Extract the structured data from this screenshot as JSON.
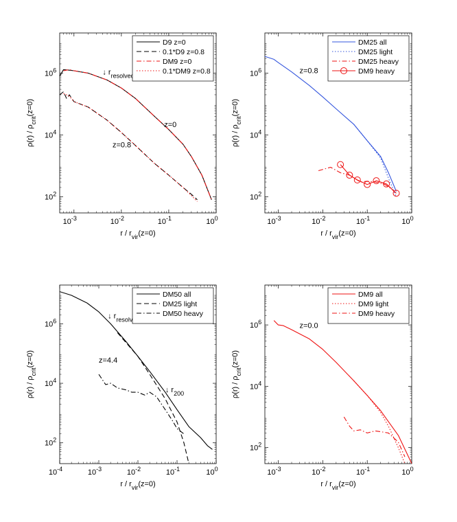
{
  "colors": {
    "black": "#000000",
    "blue": "#3355dd",
    "red": "#ee1111"
  },
  "chart_data": [
    {
      "type": "line",
      "panel": "top-left",
      "xscale": "log",
      "yscale": "log",
      "xlim": [
        0.0005,
        1
      ],
      "ylim": [
        30,
        20000000
      ],
      "xlabel": "r / r_vir(z=0)",
      "ylabel": "ρ(r) / ρ_crit(z=0)",
      "xticks": [
        {
          "value": 0.001,
          "label": "10^-3"
        },
        {
          "value": 0.01,
          "label": "10^-2"
        },
        {
          "value": 0.1,
          "label": "10^-1"
        },
        {
          "value": 1,
          "label": "10^0"
        }
      ],
      "yticks": [
        {
          "value": 100,
          "label": "10^2"
        },
        {
          "value": 10000,
          "label": "10^4"
        },
        {
          "value": 1000000,
          "label": "10^6"
        }
      ],
      "legend": "top-right",
      "series": [
        {
          "name": "D9 z=0",
          "color": "#000000",
          "dash": "solid",
          "x": [
            0.0005,
            0.0006,
            0.0008,
            0.001,
            0.002,
            0.005,
            0.01,
            0.02,
            0.05,
            0.1,
            0.2,
            0.3,
            0.5,
            0.8
          ],
          "y": [
            800000,
            1300000,
            1250000,
            1200000,
            1000000,
            600000,
            330000,
            150000,
            40000,
            15000,
            5000,
            2000,
            500,
            80
          ]
        },
        {
          "name": "0.1*D9 z=0.8",
          "color": "#000000",
          "dash": "dashed",
          "x": [
            0.0005,
            0.0006,
            0.0007,
            0.0008,
            0.001,
            0.002,
            0.005,
            0.01,
            0.02,
            0.05,
            0.1,
            0.2,
            0.3,
            0.4
          ],
          "y": [
            200000,
            250000,
            150000,
            200000,
            120000,
            80000,
            30000,
            12000,
            4500,
            1200,
            500,
            200,
            120,
            80
          ]
        },
        {
          "name": "DM9 z=0",
          "color": "#ee1111",
          "dash": "dashdot",
          "x": [
            0.0006,
            0.0008,
            0.001,
            0.002,
            0.005,
            0.01,
            0.02,
            0.05,
            0.1,
            0.2,
            0.3,
            0.5,
            0.8
          ],
          "y": [
            1200000,
            1300000,
            1200000,
            1000000,
            600000,
            330000,
            150000,
            40000,
            15000,
            5000,
            2000,
            500,
            80
          ]
        },
        {
          "name": "0.1*DM9 z=0.8",
          "color": "#ee1111",
          "dash": "dotted",
          "x": [
            0.0006,
            0.0008,
            0.001,
            0.002,
            0.005,
            0.01,
            0.02,
            0.05,
            0.1,
            0.2,
            0.3,
            0.4
          ],
          "y": [
            220000,
            180000,
            120000,
            80000,
            30000,
            12000,
            4500,
            1200,
            500,
            200,
            110,
            70
          ]
        }
      ],
      "annotations": [
        {
          "text": "↓ r",
          "sub": "resolved",
          "x": 0.004,
          "y": 900000
        },
        {
          "text": "z=0",
          "x": 0.08,
          "y": 18000
        },
        {
          "text": "z=0.8",
          "x": 0.0065,
          "y": 4000
        }
      ]
    },
    {
      "type": "line",
      "panel": "top-right",
      "xscale": "log",
      "yscale": "log",
      "xlim": [
        0.0005,
        1
      ],
      "ylim": [
        30,
        20000000
      ],
      "xlabel": "r / r_vir(z=0)",
      "ylabel": "ρ(r) / ρ_crit(z=0)",
      "xticks": [
        {
          "value": 0.001,
          "label": "10^-3"
        },
        {
          "value": 0.01,
          "label": "10^-2"
        },
        {
          "value": 0.1,
          "label": "10^-1"
        },
        {
          "value": 1,
          "label": "10^0"
        }
      ],
      "yticks": [
        {
          "value": 100,
          "label": "10^2"
        },
        {
          "value": 10000,
          "label": "10^4"
        },
        {
          "value": 1000000,
          "label": "10^6"
        }
      ],
      "legend": "top-right",
      "series": [
        {
          "name": "DM25 all",
          "color": "#3355dd",
          "dash": "solid",
          "x": [
            0.0005,
            0.0008,
            0.001,
            0.002,
            0.005,
            0.01,
            0.02,
            0.05,
            0.1,
            0.2,
            0.3,
            0.45
          ],
          "y": [
            3500000,
            2800000,
            2200000,
            1100000,
            400000,
            170000,
            70000,
            22000,
            6500,
            2000,
            600,
            150
          ]
        },
        {
          "name": "DM25 light",
          "color": "#3355dd",
          "dash": "dotted",
          "x": [
            0.05,
            0.1,
            0.2,
            0.3,
            0.45
          ],
          "y": [
            22000,
            6500,
            1800,
            400,
            100
          ]
        },
        {
          "name": "DM25 heavy",
          "color": "#ee1111",
          "dash": "dashdot",
          "x": [
            0.008,
            0.015,
            0.025,
            0.04,
            0.07,
            0.1,
            0.15,
            0.25,
            0.35,
            0.45
          ],
          "y": [
            700,
            900,
            600,
            500,
            300,
            320,
            300,
            250,
            180,
            130
          ]
        },
        {
          "name": "DM9 heavy",
          "color": "#ee1111",
          "dash": "solid",
          "markers": "circle",
          "x": [
            0.025,
            0.04,
            0.06,
            0.1,
            0.16,
            0.27,
            0.45
          ],
          "y": [
            1100,
            500,
            350,
            250,
            330,
            260,
            130
          ]
        }
      ],
      "annotations": [
        {
          "text": "z=0.8",
          "x": 0.003,
          "y": 1000000
        }
      ]
    },
    {
      "type": "line",
      "panel": "bottom-left",
      "xscale": "log",
      "yscale": "log",
      "xlim": [
        0.0001,
        1
      ],
      "ylim": [
        20,
        20000000
      ],
      "xlabel": "r / r_vir(z=0)",
      "ylabel": "ρ(r) / ρ_crit(z=0)",
      "xticks": [
        {
          "value": 0.0001,
          "label": "10^-4"
        },
        {
          "value": 0.001,
          "label": "10^-3"
        },
        {
          "value": 0.01,
          "label": "10^-2"
        },
        {
          "value": 0.1,
          "label": "10^-1"
        },
        {
          "value": 1,
          "label": "10^0"
        }
      ],
      "yticks": [
        {
          "value": 100,
          "label": "10^2"
        },
        {
          "value": 10000,
          "label": "10^4"
        },
        {
          "value": 1000000,
          "label": "10^6"
        }
      ],
      "legend": "top-right",
      "series": [
        {
          "name": "DM50 all",
          "color": "#000000",
          "dash": "solid",
          "x": [
            0.0001,
            0.0002,
            0.0005,
            0.001,
            0.002,
            0.005,
            0.01,
            0.02,
            0.05,
            0.1,
            0.2,
            0.4,
            0.6,
            0.8
          ],
          "y": [
            12000000,
            9000000,
            5000000,
            2500000,
            1000000,
            250000,
            80000,
            25000,
            5000,
            1300,
            350,
            150,
            80,
            60
          ]
        },
        {
          "name": "DM25 light",
          "color": "#000000",
          "dash": "dashed",
          "x": [
            0.003,
            0.005,
            0.01,
            0.02,
            0.05,
            0.1,
            0.15,
            0.2
          ],
          "y": [
            500000,
            230000,
            80000,
            20000,
            3000,
            500,
            100,
            20
          ]
        },
        {
          "name": "DM50 heavy",
          "color": "#000000",
          "dash": "dashdot",
          "x": [
            0.001,
            0.0015,
            0.002,
            0.003,
            0.005,
            0.007,
            0.01,
            0.015,
            0.02,
            0.03,
            0.05,
            0.08,
            0.1,
            0.15
          ],
          "y": [
            20000,
            9000,
            10000,
            7000,
            6000,
            5000,
            5000,
            4000,
            5000,
            3500,
            1300,
            500,
            300,
            200
          ]
        }
      ],
      "annotations": [
        {
          "text": "↓ r",
          "sub": "resolved",
          "x": 0.0017,
          "y": 1500000
        },
        {
          "text": "z=4.4",
          "x": 0.001,
          "y": 50000
        },
        {
          "text": "↓ r",
          "sub": "200",
          "x": 0.05,
          "y": 5000
        }
      ]
    },
    {
      "type": "line",
      "panel": "bottom-right",
      "xscale": "log",
      "yscale": "log",
      "xlim": [
        0.0005,
        1
      ],
      "ylim": [
        30,
        20000000
      ],
      "xlabel": "r / r_vir(z=0)",
      "ylabel": "ρ(r) / ρ_crit(z=0)",
      "xticks": [
        {
          "value": 0.001,
          "label": "10^-3"
        },
        {
          "value": 0.01,
          "label": "10^-2"
        },
        {
          "value": 0.1,
          "label": "10^-1"
        },
        {
          "value": 1,
          "label": "10^0"
        }
      ],
      "yticks": [
        {
          "value": 100,
          "label": "10^2"
        },
        {
          "value": 10000,
          "label": "10^4"
        },
        {
          "value": 1000000,
          "label": "10^6"
        }
      ],
      "legend": "top-right",
      "series": [
        {
          "name": "DM9 all",
          "color": "#ee1111",
          "dash": "solid",
          "x": [
            0.0008,
            0.001,
            0.0013,
            0.002,
            0.005,
            0.01,
            0.02,
            0.05,
            0.1,
            0.2,
            0.3,
            0.5,
            0.8,
            1.0
          ],
          "y": [
            1400000,
            1000000,
            950000,
            700000,
            350000,
            160000,
            60000,
            15000,
            5000,
            1600,
            700,
            250,
            60,
            30
          ]
        },
        {
          "name": "DM9 light",
          "color": "#ee1111",
          "dash": "dotted",
          "x": [
            0.05,
            0.1,
            0.2,
            0.3,
            0.5,
            0.7
          ],
          "y": [
            15000,
            5000,
            1400,
            500,
            100,
            30
          ]
        },
        {
          "name": "DM9 heavy",
          "color": "#ee1111",
          "dash": "dashdot",
          "x": [
            0.03,
            0.04,
            0.05,
            0.07,
            0.1,
            0.15,
            0.2,
            0.3,
            0.5,
            0.7
          ],
          "y": [
            1000,
            500,
            350,
            380,
            300,
            350,
            330,
            300,
            150,
            50
          ]
        }
      ],
      "annotations": [
        {
          "text": "z=0.0",
          "x": 0.003,
          "y": 800000
        }
      ]
    }
  ]
}
